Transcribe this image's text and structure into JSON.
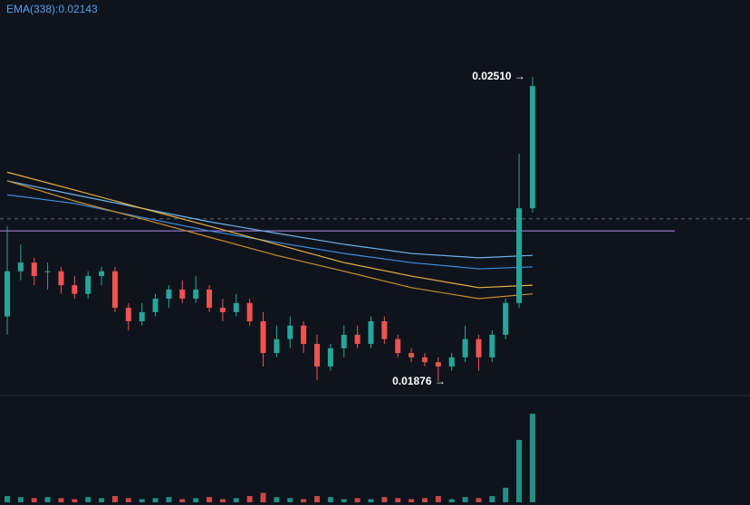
{
  "chart_data": {
    "type": "candlestick",
    "indicator_label": "EMA(338):0.02143",
    "high_label": "0.02510 →",
    "low_label": "0.01876 →",
    "ylim": [
      0.01795,
      0.0267
    ],
    "volume_lim": [
      0,
      100
    ],
    "up_color": "#26a69a",
    "down_color": "#ef5350",
    "candles": {
      "open": [
        0.02012,
        0.02106,
        0.02124,
        0.02106,
        0.02106,
        0.02077,
        0.02059,
        0.02096,
        0.02106,
        0.0203,
        0.02002,
        0.02021,
        0.02049,
        0.02068,
        0.02049,
        0.02068,
        0.0203,
        0.02021,
        0.0204,
        0.02002,
        0.01936,
        0.01965,
        0.01993,
        0.01955,
        0.01908,
        0.01946,
        0.01974,
        0.01955,
        0.02002,
        0.01965,
        0.01936,
        0.01927,
        0.01917,
        0.01908,
        0.01927,
        0.01965,
        0.01927,
        0.01974,
        0.0204,
        0.02237
      ],
      "high": [
        0.022,
        0.02162,
        0.02134,
        0.02124,
        0.02115,
        0.02096,
        0.02106,
        0.02115,
        0.02115,
        0.0204,
        0.0204,
        0.02059,
        0.02077,
        0.02087,
        0.02096,
        0.02077,
        0.02049,
        0.02059,
        0.02049,
        0.02021,
        0.01993,
        0.02012,
        0.02002,
        0.01974,
        0.01955,
        0.01993,
        0.01993,
        0.02012,
        0.02012,
        0.01974,
        0.01946,
        0.01936,
        0.01927,
        0.01936,
        0.01993,
        0.01974,
        0.01983,
        0.02049,
        0.0235,
        0.0251
      ],
      "low": [
        0.01974,
        0.02087,
        0.02077,
        0.02068,
        0.02059,
        0.02049,
        0.02049,
        0.02077,
        0.02021,
        0.01983,
        0.01993,
        0.02012,
        0.0203,
        0.0204,
        0.0204,
        0.02021,
        0.02002,
        0.02012,
        0.01993,
        0.01908,
        0.01927,
        0.01946,
        0.01936,
        0.0188,
        0.01899,
        0.01927,
        0.01946,
        0.01946,
        0.01955,
        0.01927,
        0.01917,
        0.01908,
        0.01876,
        0.01899,
        0.01917,
        0.01899,
        0.01917,
        0.01965,
        0.0203,
        0.02228
      ],
      "close": [
        0.02106,
        0.02124,
        0.02096,
        0.02106,
        0.02077,
        0.02059,
        0.02096,
        0.02106,
        0.0203,
        0.02002,
        0.02021,
        0.02049,
        0.02068,
        0.02049,
        0.02068,
        0.0203,
        0.02021,
        0.0204,
        0.02002,
        0.01936,
        0.01965,
        0.01993,
        0.01955,
        0.01908,
        0.01946,
        0.01974,
        0.01955,
        0.02002,
        0.01965,
        0.01936,
        0.01927,
        0.01917,
        0.01908,
        0.01927,
        0.01965,
        0.01927,
        0.01974,
        0.0204,
        0.02237,
        0.02491
      ]
    },
    "volume": [
      6,
      5,
      4,
      5,
      4,
      3,
      5,
      4,
      6,
      4,
      3,
      4,
      5,
      3,
      4,
      5,
      3,
      4,
      6,
      9,
      5,
      4,
      3,
      6,
      5,
      3,
      4,
      3,
      5,
      4,
      3,
      4,
      6,
      3,
      5,
      4,
      6,
      14,
      60,
      85
    ],
    "ema_x": [
      0,
      5,
      10,
      15,
      20,
      25,
      30,
      35,
      39
    ],
    "ema_lines": [
      {
        "color": "#6db3ee",
        "values": [
          0.02294,
          0.02265,
          0.02237,
          0.02209,
          0.02185,
          0.02162,
          0.02143,
          0.02134,
          0.02139
        ]
      },
      {
        "color": "#3d8fe0",
        "values": [
          0.02265,
          0.02247,
          0.02218,
          0.0219,
          0.02166,
          0.02143,
          0.02124,
          0.02111,
          0.02115
        ]
      },
      {
        "color": "#e8b040",
        "values": [
          0.02312,
          0.02275,
          0.02237,
          0.022,
          0.02162,
          0.02124,
          0.02096,
          0.02072,
          0.02077
        ]
      },
      {
        "color": "#c9902a",
        "values": [
          0.02294,
          0.02252,
          0.02215,
          0.02177,
          0.02139,
          0.02106,
          0.02072,
          0.02049,
          0.02059
        ]
      }
    ],
    "level_line": {
      "value": 0.0219,
      "color": "#b48ce8"
    },
    "crosshair": 0.02215
  }
}
